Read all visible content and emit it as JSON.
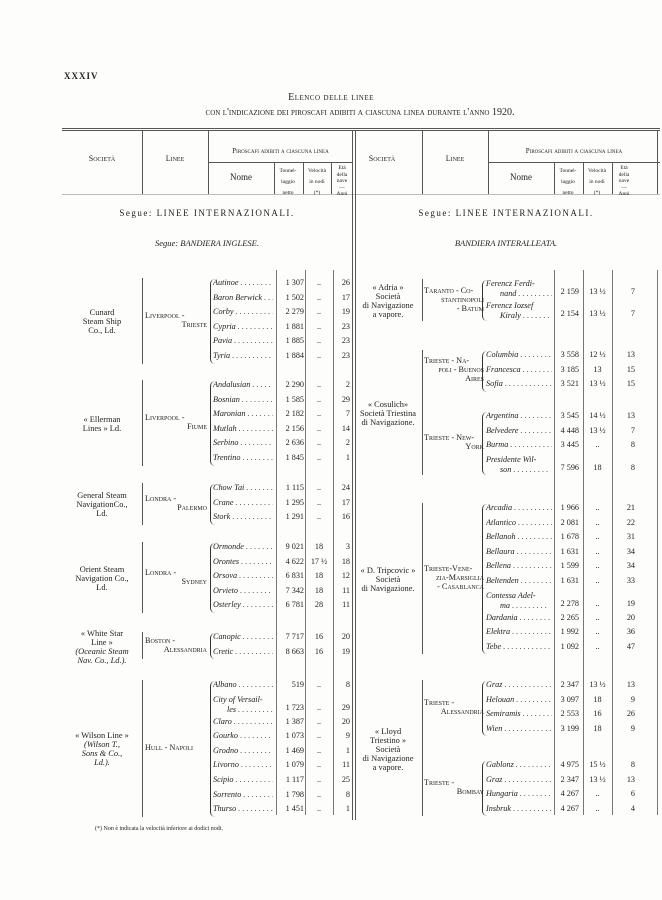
{
  "page_number": "XXXIV",
  "title": "Elenco delle linee",
  "subtitle": "con l'indicazione dei piroscafi adibiti a ciascuna linea durante l'anno 1920.",
  "header": {
    "societa": "Società",
    "linee": "Linee",
    "piroscafi": "Piroscafi adibiti a ciascuna linea",
    "nome": "Nome",
    "tonnellaggio": [
      "Tonnel-",
      "laggio",
      "netto"
    ],
    "velocita": [
      "Velocità",
      "in nodi",
      "(*)"
    ],
    "eta": [
      "Età",
      "della",
      "nave",
      "—",
      "Anni"
    ]
  },
  "left": {
    "section": "Segue: LINEE INTERNAZIONALI.",
    "flag": "Segue: BANDIERA INGLESE.",
    "companies": [
      {
        "societa": [
          "Cunard",
          "Steam Ship",
          "Co., Ld."
        ],
        "lines": [
          {
            "linee": [
              "Liverpool -",
              "Trieste"
            ],
            "ships": [
              {
                "name": "Autinoe",
                "tonn": "1 307",
                "vel": "..",
                "eta": "26"
              },
              {
                "name": "Baron Berwick",
                "tonn": "1 502",
                "vel": "..",
                "eta": "17"
              },
              {
                "name": "Corby",
                "tonn": "2 279",
                "vel": "..",
                "eta": "19"
              },
              {
                "name": "Cypria",
                "tonn": "1 881",
                "vel": "..",
                "eta": "23"
              },
              {
                "name": "Pavia",
                "tonn": "1 885",
                "vel": "..",
                "eta": "23"
              },
              {
                "name": "Tyria",
                "tonn": "1 884",
                "vel": "..",
                "eta": "23"
              }
            ]
          }
        ]
      },
      {
        "societa": [
          "« Ellerman",
          "Lines » Ld."
        ],
        "lines": [
          {
            "linee": [
              "Liverpool -",
              "Fiume"
            ],
            "ships": [
              {
                "name": "Andalusian",
                "tonn": "2 290",
                "vel": "..",
                "eta": "2"
              },
              {
                "name": "Bosnian",
                "tonn": "1 585",
                "vel": "..",
                "eta": "29"
              },
              {
                "name": "Maronian",
                "tonn": "2 182",
                "vel": "..",
                "eta": "7"
              },
              {
                "name": "Mutlah",
                "tonn": "2 156",
                "vel": "..",
                "eta": "14"
              },
              {
                "name": "Serbino",
                "tonn": "2 636",
                "vel": "..",
                "eta": "2"
              },
              {
                "name": "Trentino",
                "tonn": "1 845",
                "vel": "..",
                "eta": "1"
              }
            ]
          }
        ]
      },
      {
        "societa": [
          "General Steam",
          "NavigationCo.,",
          "Ld."
        ],
        "lines": [
          {
            "linee": [
              "Londra -",
              "Palermo"
            ],
            "ships": [
              {
                "name": "Chow Tai",
                "tonn": "1 115",
                "vel": "..",
                "eta": "24"
              },
              {
                "name": "Crane",
                "tonn": "1 295",
                "vel": "..",
                "eta": "17"
              },
              {
                "name": "Stork",
                "tonn": "1 291",
                "vel": "..",
                "eta": "16"
              }
            ]
          }
        ]
      },
      {
        "societa": [
          "Orient Steam",
          "Navigation Co.,",
          "Ld."
        ],
        "lines": [
          {
            "linee": [
              "Londra -",
              "Sydney"
            ],
            "ships": [
              {
                "name": "Ormonde",
                "tonn": "9 021",
                "vel": "18",
                "eta": "3"
              },
              {
                "name": "Orontes",
                "tonn": "4 622",
                "vel": "17 ½",
                "eta": "18"
              },
              {
                "name": "Orsova",
                "tonn": "6 831",
                "vel": "18",
                "eta": "12"
              },
              {
                "name": "Orvieto",
                "tonn": "7 342",
                "vel": "18",
                "eta": "11"
              },
              {
                "name": "Osterley",
                "tonn": "6 781",
                "vel": "28",
                "eta": "11"
              }
            ]
          }
        ]
      },
      {
        "societa": [
          "« White Star",
          "Line »"
        ],
        "societa_italic": [
          "(Oceanic Steam",
          "Nav. Co., Ld.)."
        ],
        "lines": [
          {
            "linee": [
              "Boston -",
              "Alessandria"
            ],
            "ships": [
              {
                "name": "Canopic",
                "tonn": "7 717",
                "vel": "16",
                "eta": "20"
              },
              {
                "name": "Cretic",
                "tonn": "8 663",
                "vel": "16",
                "eta": "19"
              }
            ]
          }
        ]
      },
      {
        "societa": [
          "« Wilson Line »"
        ],
        "societa_italic": [
          "(Wilson T.,",
          "Sons & Co.,",
          "Ld.)."
        ],
        "lines": [
          {
            "linee": [
              "Hull - Napoli"
            ],
            "ships": [
              {
                "name": "Albano",
                "tonn": "519",
                "vel": "..",
                "eta": "8"
              },
              {
                "name": "City of Versail-",
                "name2": "les",
                "tonn": "1 723",
                "vel": "..",
                "eta": "29"
              },
              {
                "name": "Claro",
                "tonn": "1 387",
                "vel": "..",
                "eta": "20"
              },
              {
                "name": "Gourko",
                "tonn": "1 073",
                "vel": "..",
                "eta": "9"
              },
              {
                "name": "Grodno",
                "tonn": "1 469",
                "vel": "..",
                "eta": "1"
              },
              {
                "name": "Livorno",
                "tonn": "1 079",
                "vel": "..",
                "eta": "11"
              },
              {
                "name": "Scipio",
                "tonn": "1 117",
                "vel": "..",
                "eta": "25"
              },
              {
                "name": "Sorrento",
                "tonn": "1 798",
                "vel": "..",
                "eta": "8"
              },
              {
                "name": "Thurso",
                "tonn": "1 451",
                "vel": "..",
                "eta": "1"
              }
            ]
          }
        ]
      }
    ]
  },
  "right": {
    "section": "Segue: LINEE INTERNAZIONALI.",
    "flag": "BANDIERA INTERALLEATA.",
    "companies": [
      {
        "societa": [
          "« Adria »",
          "Società",
          "di Navigazione",
          "a vapore."
        ],
        "lines": [
          {
            "linee": [
              "Taranto - Co-",
              "stantinopoli",
              "- Batum"
            ],
            "ships": [
              {
                "name": "Ferencz Ferdi-",
                "name2": "nand",
                "tonn": "2 159",
                "vel": "13 ½",
                "eta": "7"
              },
              {
                "name": "Ferencz Iozsef",
                "name2": "Kiraly",
                "tonn": "2 154",
                "vel": "13 ½",
                "eta": "7"
              }
            ]
          }
        ]
      },
      {
        "societa": [
          "« Cosulich»",
          "Società Triestina",
          "di Navigazione."
        ],
        "lines": [
          {
            "linee": [
              "Trieste - Na-",
              "poli - Buenos",
              "Aires"
            ],
            "ships": [
              {
                "name": "Columbia",
                "tonn": "3 558",
                "vel": "12 ½",
                "eta": "13"
              },
              {
                "name": "Francesca",
                "tonn": "3 185",
                "vel": "13",
                "eta": "15"
              },
              {
                "name": "Sofia",
                "tonn": "3 521",
                "vel": "13 ½",
                "eta": "15"
              }
            ]
          },
          {
            "linee": [
              "Trieste - New-",
              "York"
            ],
            "ships": [
              {
                "name": "Argentina",
                "tonn": "3 545",
                "vel": "14 ½",
                "eta": "13"
              },
              {
                "name": "Belvedere",
                "tonn": "4 448",
                "vel": "13 ½",
                "eta": "7"
              },
              {
                "name": "Burma",
                "tonn": "3 445",
                "vel": "..",
                "eta": "8"
              },
              {
                "name": "Presidente Wil-",
                "name2": "son",
                "tonn": "7 596",
                "vel": "18",
                "eta": "8"
              }
            ]
          }
        ]
      },
      {
        "societa": [
          "« D. Tripcovic »",
          "Società",
          "di Navigazione."
        ],
        "lines": [
          {
            "linee": [
              "Trieste-Vene-",
              "zia-Marsiglia",
              "- Casablanca"
            ],
            "ships": [
              {
                "name": "Arcadia",
                "tonn": "1 966",
                "vel": "..",
                "eta": "21"
              },
              {
                "name": "Atlantico",
                "tonn": "2 081",
                "vel": "..",
                "eta": "22"
              },
              {
                "name": "Bellanoh",
                "tonn": "1 678",
                "vel": "..",
                "eta": "31"
              },
              {
                "name": "Bellaura",
                "tonn": "1 631",
                "vel": "..",
                "eta": "34"
              },
              {
                "name": "Bellena",
                "tonn": "1 599",
                "vel": "..",
                "eta": "34"
              },
              {
                "name": "Beltenden",
                "tonn": "1 631",
                "vel": "..",
                "eta": "33"
              },
              {
                "name": "Contessa Adel-",
                "name2": "ma",
                "tonn": "2 278",
                "vel": "..",
                "eta": "19"
              },
              {
                "name": "Dardania",
                "tonn": "2 265",
                "vel": "..",
                "eta": "20"
              },
              {
                "name": "Elektra",
                "tonn": "1 992",
                "vel": "..",
                "eta": "36"
              },
              {
                "name": "Tebe",
                "tonn": "1 092",
                "vel": "..",
                "eta": "47"
              }
            ]
          }
        ]
      },
      {
        "societa": [
          "« Lloyd",
          "Triestino »",
          "Società",
          "di Navigazione",
          "a vapore."
        ],
        "lines": [
          {
            "linee": [
              "Trieste -",
              "Alessandria"
            ],
            "ships": [
              {
                "name": "Graz",
                "tonn": "2 347",
                "vel": "13 ½",
                "eta": "13"
              },
              {
                "name": "Helouan",
                "tonn": "3 097",
                "vel": "18",
                "eta": "9"
              },
              {
                "name": "Semiramis",
                "tonn": "2 553",
                "vel": "16",
                "eta": "26"
              },
              {
                "name": "Wien",
                "tonn": "3 199",
                "vel": "18",
                "eta": "9"
              }
            ]
          },
          {
            "linee": [
              "Trieste -",
              "Bombay"
            ],
            "ships": [
              {
                "name": "Gablonz",
                "tonn": "4 975",
                "vel": "15 ½",
                "eta": "8"
              },
              {
                "name": "Graz",
                "tonn": "2 347",
                "vel": "13 ½",
                "eta": "13"
              },
              {
                "name": "Hungaria",
                "tonn": "4 267",
                "vel": "..",
                "eta": "6"
              },
              {
                "name": "Insbruk",
                "tonn": "4 267",
                "vel": "..",
                "eta": "4"
              }
            ]
          }
        ]
      }
    ]
  },
  "footnote": "(*) Non è indicata la velocità inferiore ai dodici nodi."
}
